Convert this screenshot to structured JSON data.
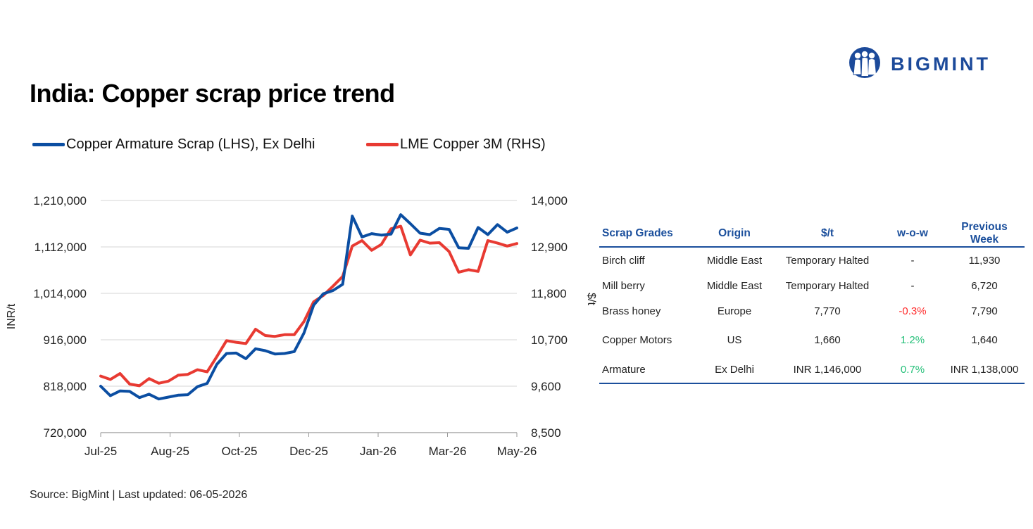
{
  "title": "India: Copper scrap price trend",
  "logo": {
    "text": "BIGMINT",
    "icon": "bigmint-people-logo-icon",
    "color": "#1c4a9a"
  },
  "chart_data": {
    "type": "line",
    "title": "India: Copper scrap price trend",
    "x": [
      "Jul-25",
      "Jul-25",
      "Jul-25",
      "Jul-25",
      "Jul-25",
      "Aug-25",
      "Aug-25",
      "Aug-25",
      "Aug-25",
      "Sep-25",
      "Sep-25",
      "Sep-25",
      "Sep-25",
      "Sep-25",
      "Oct-25",
      "Oct-25",
      "Oct-25",
      "Oct-25",
      "Nov-25",
      "Nov-25",
      "Nov-25",
      "Nov-25",
      "Dec-25",
      "Dec-25",
      "Dec-25",
      "Dec-25",
      "Dec-25",
      "Jan-26",
      "Jan-26",
      "Jan-26",
      "Jan-26",
      "Feb-26",
      "Feb-26",
      "Feb-26",
      "Feb-26",
      "Mar-26",
      "Mar-26",
      "Mar-26",
      "Mar-26",
      "Apr-26",
      "Apr-26",
      "Apr-26",
      "Apr-26",
      "May-26"
    ],
    "x_tick_labels": [
      "Jul-25",
      "Aug-25",
      "Oct-25",
      "Dec-25",
      "Jan-26",
      "Mar-26",
      "May-26"
    ],
    "series": [
      {
        "name": "Copper Armature Scrap (LHS), Ex Delhi",
        "axis": "left",
        "color": "#0b4ea2",
        "values": [
          818000,
          798000,
          808000,
          807000,
          794000,
          801000,
          791000,
          795000,
          799000,
          800000,
          817000,
          824000,
          864000,
          887000,
          888000,
          876000,
          897000,
          893000,
          886000,
          887000,
          891000,
          930000,
          989000,
          1013000,
          1020000,
          1033000,
          1177000,
          1133000,
          1140000,
          1137000,
          1139000,
          1180000,
          1161000,
          1141000,
          1138000,
          1151000,
          1149000,
          1110000,
          1109000,
          1153000,
          1138000,
          1159000,
          1143000,
          1152000
        ]
      },
      {
        "name": "LME Copper 3M (RHS)",
        "axis": "right",
        "color": "#e83a32",
        "values": [
          9840,
          9760,
          9900,
          9650,
          9610,
          9780,
          9670,
          9720,
          9860,
          9880,
          9990,
          9940,
          10300,
          10680,
          10640,
          10610,
          10950,
          10800,
          10780,
          10820,
          10820,
          11130,
          11600,
          11750,
          11970,
          12200,
          12920,
          13050,
          12820,
          12960,
          13330,
          13390,
          12710,
          13060,
          12990,
          13000,
          12790,
          12300,
          12360,
          12320,
          13050,
          12990,
          12920,
          12980
        ]
      }
    ],
    "y_left": {
      "label": "INR/t",
      "lim": [
        720000,
        1210000
      ],
      "ticks": [
        "720,000",
        "818,000",
        "916,000",
        "1,014,000",
        "1,112,000",
        "1,210,000"
      ]
    },
    "y_right": {
      "label": "$/t",
      "lim": [
        8500,
        14000
      ],
      "ticks": [
        "8,500",
        "9,600",
        "10,700",
        "11,800",
        "12,900",
        "14,000"
      ]
    },
    "grid": true,
    "legend": "top"
  },
  "table": {
    "headers": [
      "Scrap Grades",
      "Origin",
      "$/t",
      "w-o-w",
      "Previous Week"
    ],
    "rows": [
      {
        "grade": "Birch cliff",
        "origin": "Middle East",
        "price": "Temporary Halted",
        "wow": "-",
        "wow_sign": "none",
        "prev": "11,930"
      },
      {
        "grade": "Mill berry",
        "origin": "Middle East",
        "price": "Temporary Halted",
        "wow": "-",
        "wow_sign": "none",
        "prev": "6,720"
      },
      {
        "grade": "Brass honey",
        "origin": "Europe",
        "price": "7,770",
        "wow": "-0.3%",
        "wow_sign": "neg",
        "prev": "7,790"
      },
      {
        "grade": "Copper Motors",
        "origin": "US",
        "price": "1,660",
        "wow": "1.2%",
        "wow_sign": "pos",
        "prev": "1,640"
      },
      {
        "grade": "Armature",
        "origin": "Ex Delhi",
        "price": "INR 1,146,000",
        "wow": "0.7%",
        "wow_sign": "pos",
        "prev": "INR 1,138,000"
      }
    ]
  },
  "source": "Source: BigMint | Last updated: 06-05-2026"
}
